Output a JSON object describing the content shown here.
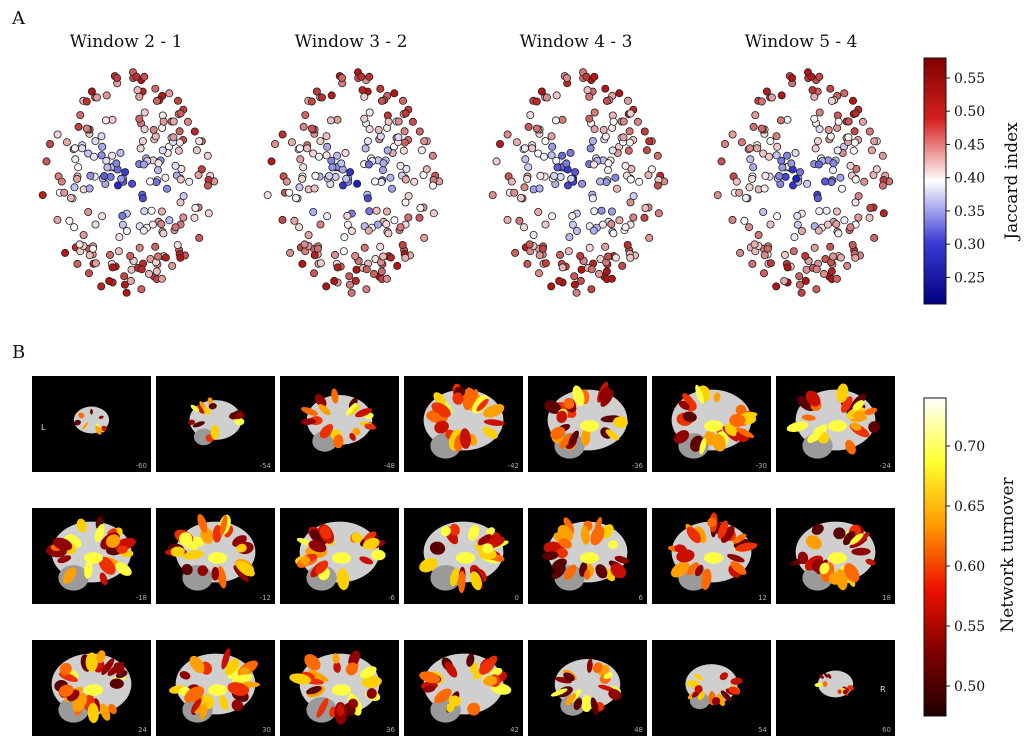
{
  "panels": {
    "a_letter": "A",
    "b_letter": "B"
  },
  "windows": [
    {
      "title": "Window 2 - 1"
    },
    {
      "title": "Window 3 - 2"
    },
    {
      "title": "Window 4 - 3"
    },
    {
      "title": "Window 5 - 4"
    }
  ],
  "colorbar_a": {
    "label": "Jaccard index",
    "ticks": [
      "0.55",
      "0.50",
      "0.45",
      "0.40",
      "0.35",
      "0.30",
      "0.25"
    ],
    "tick_values": [
      0.55,
      0.5,
      0.45,
      0.4,
      0.35,
      0.3,
      0.25
    ],
    "range": [
      0.21,
      0.58
    ],
    "colors": [
      "#7f0000",
      "#d62020",
      "#ffffff",
      "#3b3bd6",
      "#00007f"
    ]
  },
  "colorbar_b": {
    "label": "Network turnover",
    "ticks": [
      "0.70",
      "0.65",
      "0.60",
      "0.55",
      "0.50"
    ],
    "tick_values": [
      0.7,
      0.65,
      0.6,
      0.55,
      0.5
    ],
    "range": [
      0.475,
      0.74
    ],
    "colors": [
      "#ffffff",
      "#ffff30",
      "#ff9900",
      "#ee1100",
      "#800000",
      "#200000"
    ]
  },
  "slices": {
    "rows": [
      [
        "-60",
        "-54",
        "-48",
        "-42",
        "-36",
        "-30",
        "-24"
      ],
      [
        "-18",
        "-12",
        "-6",
        "0",
        "6",
        "12",
        "18"
      ],
      [
        "24",
        "30",
        "36",
        "42",
        "48",
        "54",
        "60"
      ]
    ],
    "left_label": "L",
    "right_label": "R"
  }
}
